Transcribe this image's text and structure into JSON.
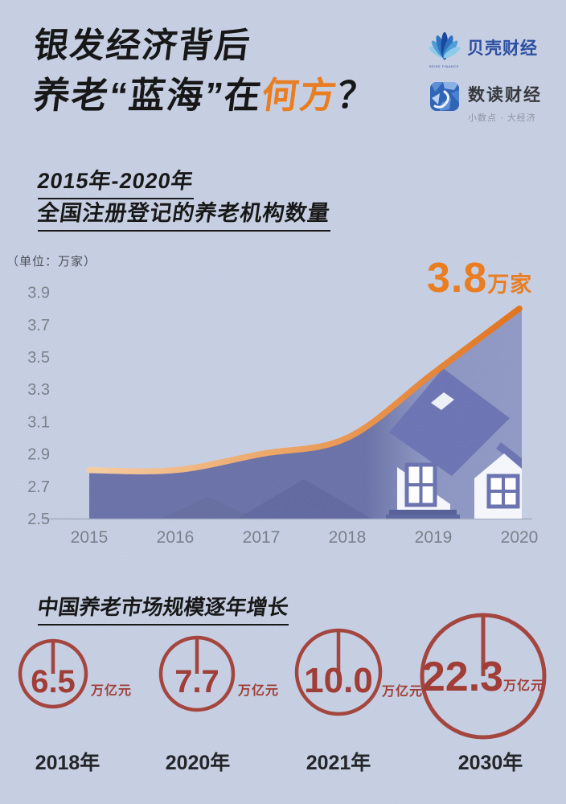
{
  "page": {
    "background": "#c6cfe3",
    "accent_orange": "#ea7c1e",
    "accent_red": "#a4433c"
  },
  "header": {
    "title_line1": "银发经济背后",
    "title_line2_pre": "养老“蓝海”在",
    "title_line2_highlight": "何方",
    "title_line2_post": "？"
  },
  "logos": {
    "beike": {
      "name": "贝壳财经",
      "subtext": "BEIKE FINANCE"
    },
    "shudu": {
      "name": "数读财经",
      "tagline": "小数点 · 大经济"
    }
  },
  "section1": {
    "subtitle_line1": "2015年-2020年",
    "subtitle_line2": "全国注册登记的养老机构数量",
    "unit_label": "（单位：万家）",
    "annotation_value": "3.8",
    "annotation_unit": "万家"
  },
  "section2": {
    "title": "中国养老市场规模逐年增长",
    "items": [
      {
        "value": "6.5",
        "unit": "万亿元",
        "year": "2018年"
      },
      {
        "value": "7.7",
        "unit": "万亿元",
        "year": "2020年"
      },
      {
        "value": "10.0",
        "unit": "万亿元",
        "year": "2021年"
      },
      {
        "value": "22.3",
        "unit": "万亿元",
        "year": "2030年"
      }
    ]
  },
  "chart_data": [
    {
      "type": "area",
      "title": "2015年-2020年全国注册登记的养老机构数量",
      "unit": "万家",
      "x": [
        "2015",
        "2016",
        "2017",
        "2018",
        "2019",
        "2020"
      ],
      "values": [
        2.8,
        2.8,
        2.9,
        3.0,
        3.4,
        3.8
      ],
      "yticks": [
        "3.9",
        "3.7",
        "3.5",
        "3.3",
        "3.1",
        "2.9",
        "2.7",
        "2.5"
      ],
      "ylim": [
        2.5,
        3.9
      ],
      "grid": false,
      "annotation": "3.8万家",
      "line_color_start": "#f6cda2",
      "line_color_end": "#e2731c",
      "area_color": "#6b72a8"
    },
    {
      "type": "pie",
      "subtype": "proportional-circles",
      "title": "中国养老市场规模逐年增长",
      "categories": [
        "2018年",
        "2020年",
        "2021年",
        "2030年"
      ],
      "values": [
        6.5,
        7.7,
        10.0,
        22.3
      ],
      "unit": "万亿元",
      "circle_color": "#a4433c"
    }
  ]
}
